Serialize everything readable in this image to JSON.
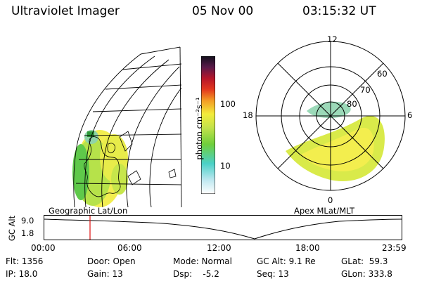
{
  "header": {
    "instrument": "Ultraviolet Imager",
    "date": "05 Nov 00",
    "time": "03:15:32 UT"
  },
  "colorbar": {
    "unit_label": "photon cm⁻²s⁻¹",
    "ticks": [
      "100",
      "10"
    ]
  },
  "panels": {
    "left_label": "Geographic Lat/Lon",
    "right_label": "Apex MLat/MLT"
  },
  "polar_labels": {
    "mlt_12": "12",
    "mlt_18": "18",
    "mlt_6": "6",
    "mlt_0": "0",
    "lat_60": "60",
    "lat_70": "70",
    "lat_80": "80"
  },
  "altitude_plot": {
    "axis_title": "GC Alt",
    "y_high": "9.0",
    "y_low": "1.8",
    "x_ticks": [
      "00:00",
      "06:00",
      "12:00",
      "18:00",
      "23:59"
    ]
  },
  "info": {
    "flt": "Flt: 1356",
    "ip": "IP: 18.0",
    "door": "Door: Open",
    "gain": "Gain: 13",
    "mode": "Mode: Normal",
    "dsp": "Dsp:    -5.2",
    "gcalt": "GC Alt: 9.1 Re",
    "seq": "Seq: 13",
    "glat": "GLat:  59.3",
    "glon": "GLon: 333.8"
  }
}
